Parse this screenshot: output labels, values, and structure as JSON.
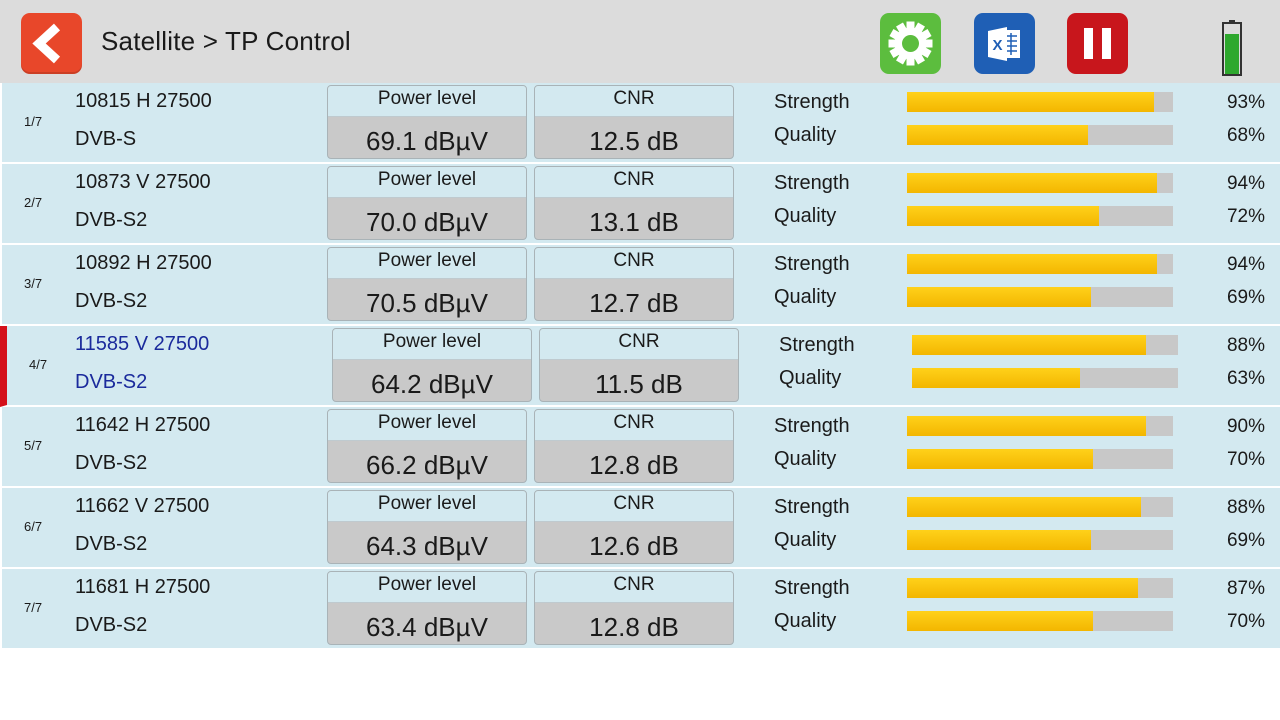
{
  "header": {
    "title": "Satellite > TP Control",
    "buttons": [
      "back-icon",
      "gear-icon",
      "excel-icon",
      "pause-icon"
    ],
    "battery_level_percent": 80,
    "colors": {
      "back": "#e8472a",
      "settings": "#5cbd3e",
      "excel": "#1f5fb5",
      "pause": "#c8161c",
      "battery": "#2ea82e"
    }
  },
  "labels": {
    "power": "Power level",
    "cnr": "CNR",
    "strength": "Strength",
    "quality": "Quality"
  },
  "selected_index": 3,
  "rows": [
    {
      "index": "1/7",
      "freq": "10815 H  27500",
      "system": "DVB-S",
      "power": "69.1 dBµV",
      "cnr": "12.5 dB",
      "strength": 93,
      "strength_text": "93%",
      "quality": 68,
      "quality_text": "68%"
    },
    {
      "index": "2/7",
      "freq": "10873 V 27500",
      "system": "DVB-S2",
      "power": "70.0 dBµV",
      "cnr": "13.1 dB",
      "strength": 94,
      "strength_text": "94%",
      "quality": 72,
      "quality_text": "72%"
    },
    {
      "index": "3/7",
      "freq": "10892 H  27500",
      "system": "DVB-S2",
      "power": "70.5 dBµV",
      "cnr": "12.7 dB",
      "strength": 94,
      "strength_text": "94%",
      "quality": 69,
      "quality_text": "69%"
    },
    {
      "index": "4/7",
      "freq": "11585 V 27500",
      "system": "DVB-S2",
      "power": "64.2 dBµV",
      "cnr": "11.5 dB",
      "strength": 88,
      "strength_text": "88%",
      "quality": 63,
      "quality_text": "63%"
    },
    {
      "index": "5/7",
      "freq": "11642 H  27500",
      "system": "DVB-S2",
      "power": "66.2 dBµV",
      "cnr": "12.8 dB",
      "strength": 90,
      "strength_text": "90%",
      "quality": 70,
      "quality_text": "70%"
    },
    {
      "index": "6/7",
      "freq": "11662 V 27500",
      "system": "DVB-S2",
      "power": "64.3 dBµV",
      "cnr": "12.6 dB",
      "strength": 88,
      "strength_text": "88%",
      "quality": 69,
      "quality_text": "69%"
    },
    {
      "index": "7/7",
      "freq": "11681 H  27500",
      "system": "DVB-S2",
      "power": "63.4 dBµV",
      "cnr": "12.8 dB",
      "strength": 87,
      "strength_text": "87%",
      "quality": 70,
      "quality_text": "70%"
    }
  ]
}
